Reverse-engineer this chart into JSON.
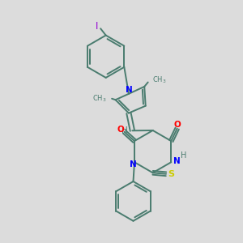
{
  "background_color": "#dcdcdc",
  "bond_color": "#4a7c6f",
  "N_color": "#0000ff",
  "O_color": "#ff0000",
  "S_color": "#cccc00",
  "I_color": "#9400d3",
  "H_color": "#4a7c6f",
  "line_width": 1.4,
  "font_size": 7.5,
  "xlim": [
    0,
    10
  ],
  "ylim": [
    0,
    10
  ]
}
